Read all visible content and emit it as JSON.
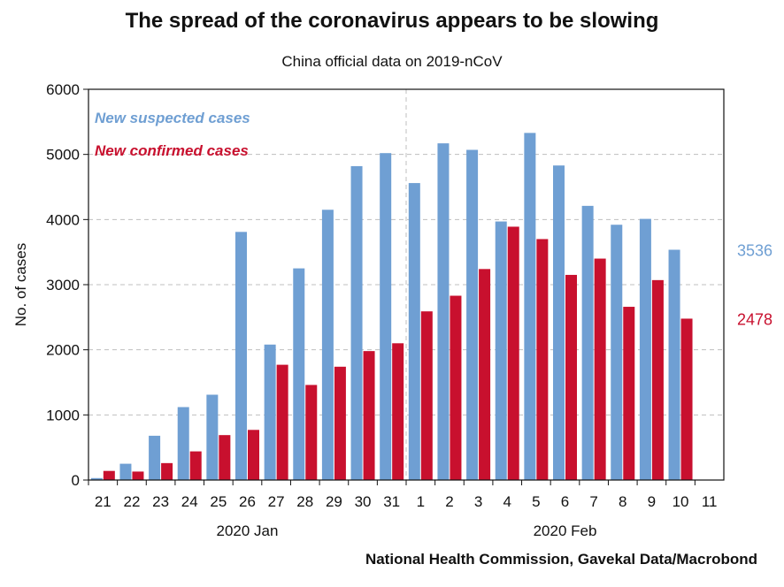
{
  "title": "The spread of the coronavirus appears to be slowing",
  "subtitle": "China official data on 2019-nCoV",
  "source": "National Health Commission, Gavekal Data/Macrobond",
  "colors": {
    "suspected": "#6f9fd3",
    "confirmed": "#c8102e",
    "grid": "#bfbfbf",
    "axis": "#111111"
  },
  "chart_data": {
    "type": "bar",
    "title": "The spread of the coronavirus appears to be slowing",
    "subtitle": "China official data on 2019-nCoV",
    "ylabel": "No. of cases",
    "ylim": [
      0,
      6000
    ],
    "yticks": [
      0,
      1000,
      2000,
      3000,
      4000,
      5000,
      6000
    ],
    "grid": true,
    "legend_position": "top-left",
    "categories": [
      "21",
      "22",
      "23",
      "24",
      "25",
      "26",
      "27",
      "28",
      "29",
      "30",
      "31",
      "1",
      "2",
      "3",
      "4",
      "5",
      "6",
      "7",
      "8",
      "9",
      "10",
      "11"
    ],
    "groups": [
      {
        "label": "2020 Jan",
        "from": "21",
        "to": "31"
      },
      {
        "label": "2020 Feb",
        "from": "1",
        "to": "11"
      }
    ],
    "series": [
      {
        "name": "New suspected cases",
        "color": "#6f9fd3",
        "values": [
          30,
          250,
          680,
          1120,
          1310,
          3810,
          2080,
          3250,
          4150,
          4820,
          5020,
          4560,
          5170,
          5070,
          3970,
          5330,
          4830,
          4210,
          3920,
          4010,
          3536,
          0
        ]
      },
      {
        "name": "New confirmed cases",
        "color": "#c8102e",
        "values": [
          140,
          130,
          260,
          440,
          690,
          770,
          1770,
          1460,
          1740,
          1980,
          2100,
          2590,
          2830,
          3240,
          3890,
          3700,
          3150,
          3400,
          2660,
          3070,
          2478,
          0
        ]
      }
    ],
    "end_labels": [
      {
        "series": "New suspected cases",
        "text": "3536",
        "value": 3536
      },
      {
        "series": "New confirmed cases",
        "text": "2478",
        "value": 2478
      }
    ]
  }
}
